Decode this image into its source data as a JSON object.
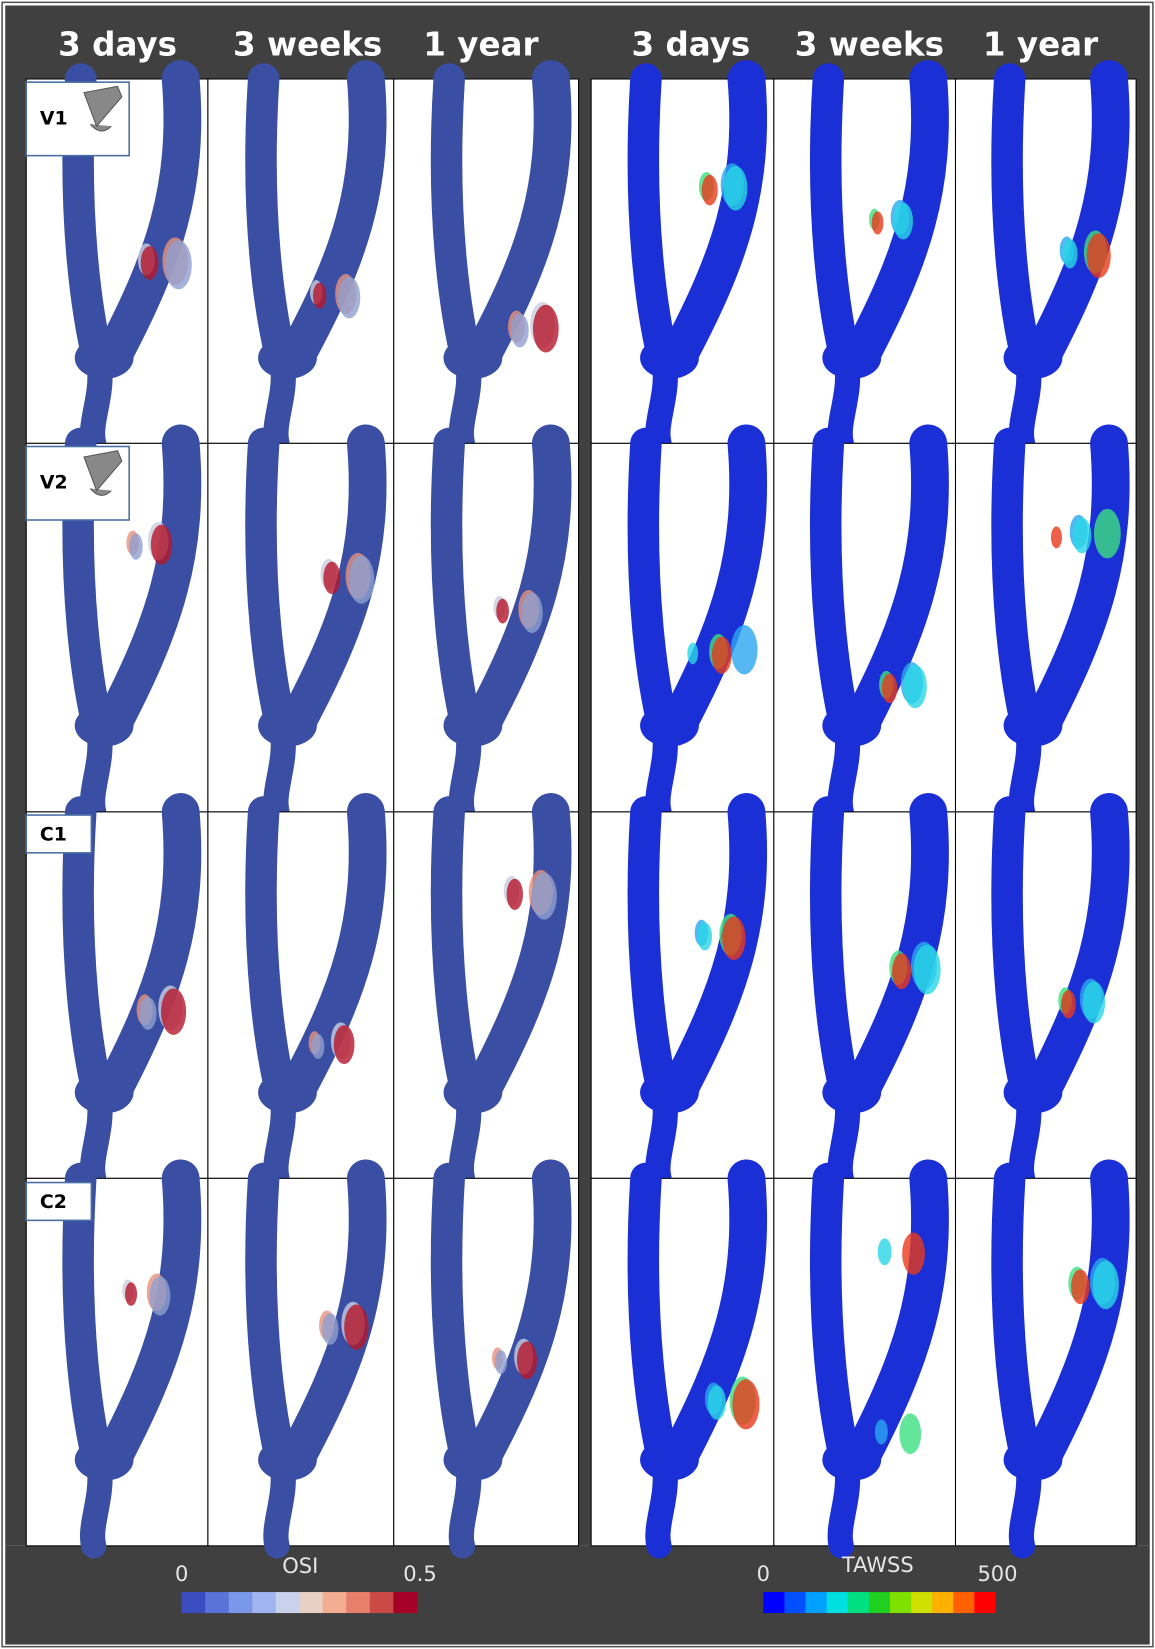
{
  "left_panel": {
    "columns": [
      "3 days",
      "3 weeks",
      "1 year"
    ],
    "colorbar": {
      "title": "OSI",
      "min": 0,
      "max": 0.5
    }
  },
  "right_panel": {
    "columns": [
      "3 days",
      "3 weeks",
      "1 year"
    ],
    "colorbar": {
      "title": "TAWSS",
      "min": 0,
      "max": 500
    }
  },
  "rows": [
    "V1",
    "V2",
    "C1",
    "C2"
  ]
}
